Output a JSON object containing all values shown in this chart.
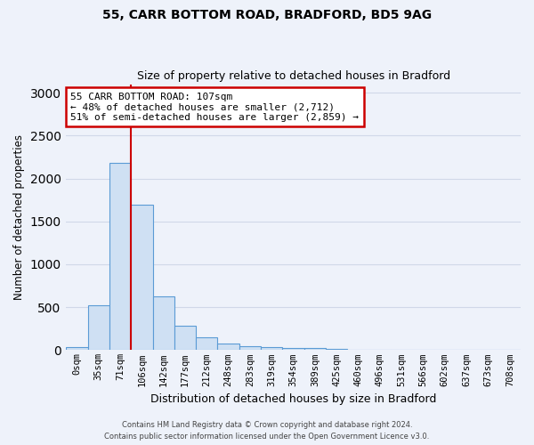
{
  "title1": "55, CARR BOTTOM ROAD, BRADFORD, BD5 9AG",
  "title2": "Size of property relative to detached houses in Bradford",
  "xlabel": "Distribution of detached houses by size in Bradford",
  "ylabel": "Number of detached properties",
  "bar_labels": [
    "0sqm",
    "35sqm",
    "71sqm",
    "106sqm",
    "142sqm",
    "177sqm",
    "212sqm",
    "248sqm",
    "283sqm",
    "319sqm",
    "354sqm",
    "389sqm",
    "425sqm",
    "460sqm",
    "496sqm",
    "531sqm",
    "566sqm",
    "602sqm",
    "637sqm",
    "673sqm",
    "708sqm"
  ],
  "bar_values": [
    30,
    520,
    2180,
    1700,
    630,
    280,
    150,
    80,
    45,
    30,
    25,
    20,
    10,
    5,
    2,
    1,
    1,
    0,
    0,
    0,
    0
  ],
  "bar_color": "#cfe0f3",
  "bar_edge_color": "#5b9bd5",
  "ylim": [
    0,
    3100
  ],
  "yticks": [
    0,
    500,
    1000,
    1500,
    2000,
    2500,
    3000
  ],
  "vline_color": "#cc0000",
  "vline_bin_index": 3,
  "annotation_text": "55 CARR BOTTOM ROAD: 107sqm\n← 48% of detached houses are smaller (2,712)\n51% of semi-detached houses are larger (2,859) →",
  "annotation_box_color": "#ffffff",
  "annotation_border_color": "#cc0000",
  "footer1": "Contains HM Land Registry data © Crown copyright and database right 2024.",
  "footer2": "Contains public sector information licensed under the Open Government Licence v3.0.",
  "background_color": "#eef2fa",
  "grid_color": "#d0d8e8"
}
